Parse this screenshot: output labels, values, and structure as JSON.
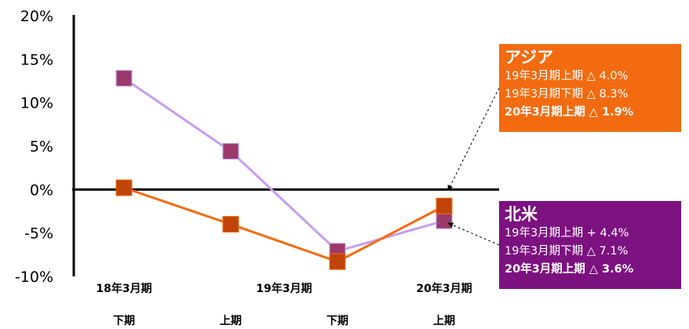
{
  "chart_data": {
    "type": "line",
    "y_ticks": [
      "20%",
      "15%",
      "10%",
      "5%",
      "0%",
      "-5%",
      "-10%"
    ],
    "ylim": [
      -10,
      20
    ],
    "x_labels_top": [
      "18年3月期",
      "19年3月期",
      "20年3月期"
    ],
    "x_labels_bottom": [
      "下期",
      "上期",
      "下期",
      "上期"
    ],
    "x": [
      "18年3月期 下期",
      "19年3月期 上期",
      "19年3月期 下期",
      "20年3月期 上期"
    ],
    "series": [
      {
        "name": "北米",
        "color": "#c89cf0",
        "marker_color": "#9b3a6a",
        "values": [
          12.8,
          4.4,
          -7.1,
          -3.6
        ]
      },
      {
        "name": "アジア",
        "color": "#f26b10",
        "marker_color": "#c0440a",
        "values": [
          0.2,
          -4.0,
          -8.3,
          -1.9
        ]
      }
    ]
  },
  "callouts": {
    "asia": {
      "title": "アジア",
      "lines": [
        "19年3月期上期 △ 4.0%",
        "19年3月期下期 △ 8.3%",
        "20年3月期上期 △ 1.9%"
      ],
      "bg": "#f26b10"
    },
    "north_america": {
      "title": "北米",
      "lines": [
        "19年3月期上期 + 4.4%",
        "19年3月期下期 △ 7.1%",
        "20年3月期上期 △ 3.6%"
      ],
      "bg": "#7c1180"
    }
  }
}
